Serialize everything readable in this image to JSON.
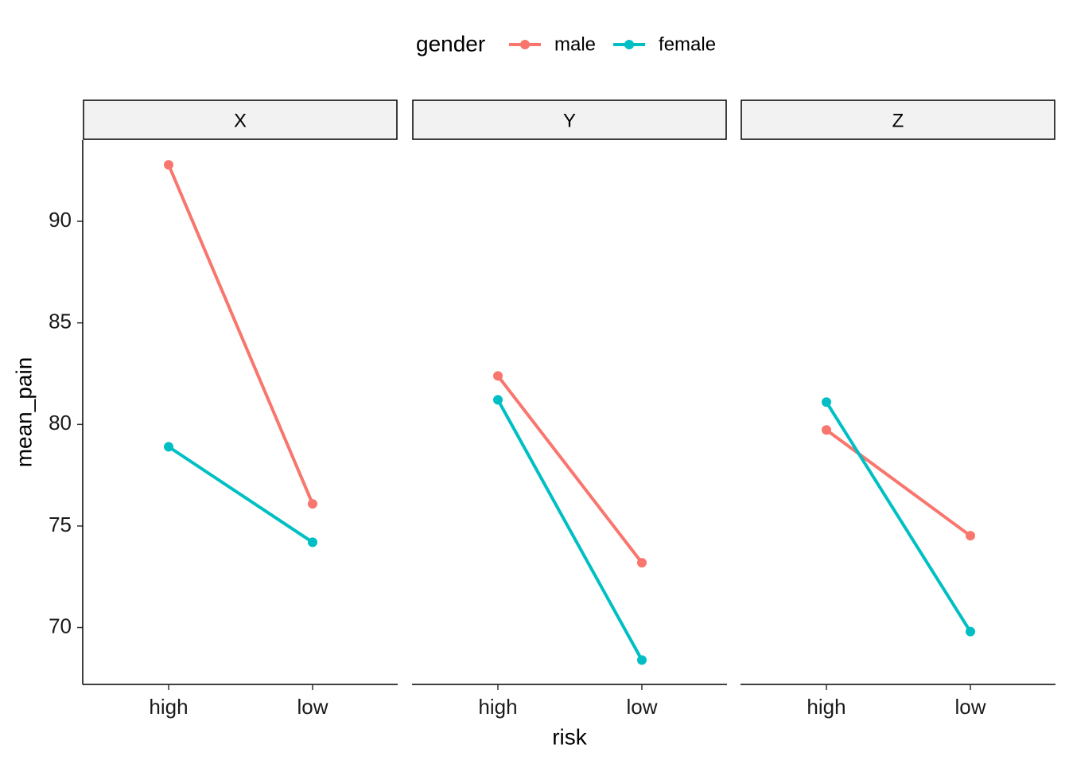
{
  "chart_data": {
    "type": "line",
    "legend_title": "gender",
    "x_label": "risk",
    "y_label": "mean_pain",
    "facets": [
      "X",
      "Y",
      "Z"
    ],
    "categories": [
      "high",
      "low"
    ],
    "ylim": [
      67.2,
      94.0
    ],
    "yticks": [
      70,
      75,
      80,
      85,
      90
    ],
    "series": [
      {
        "name": "male",
        "color": "#F8766D",
        "values": [
          [
            92.78,
            76.09
          ],
          [
            82.39,
            73.19
          ],
          [
            79.73,
            74.52
          ]
        ]
      },
      {
        "name": "female",
        "color": "#00BFC4",
        "values": [
          [
            78.9,
            74.2
          ],
          [
            81.21,
            68.4
          ],
          [
            81.1,
            69.8
          ]
        ]
      }
    ]
  }
}
